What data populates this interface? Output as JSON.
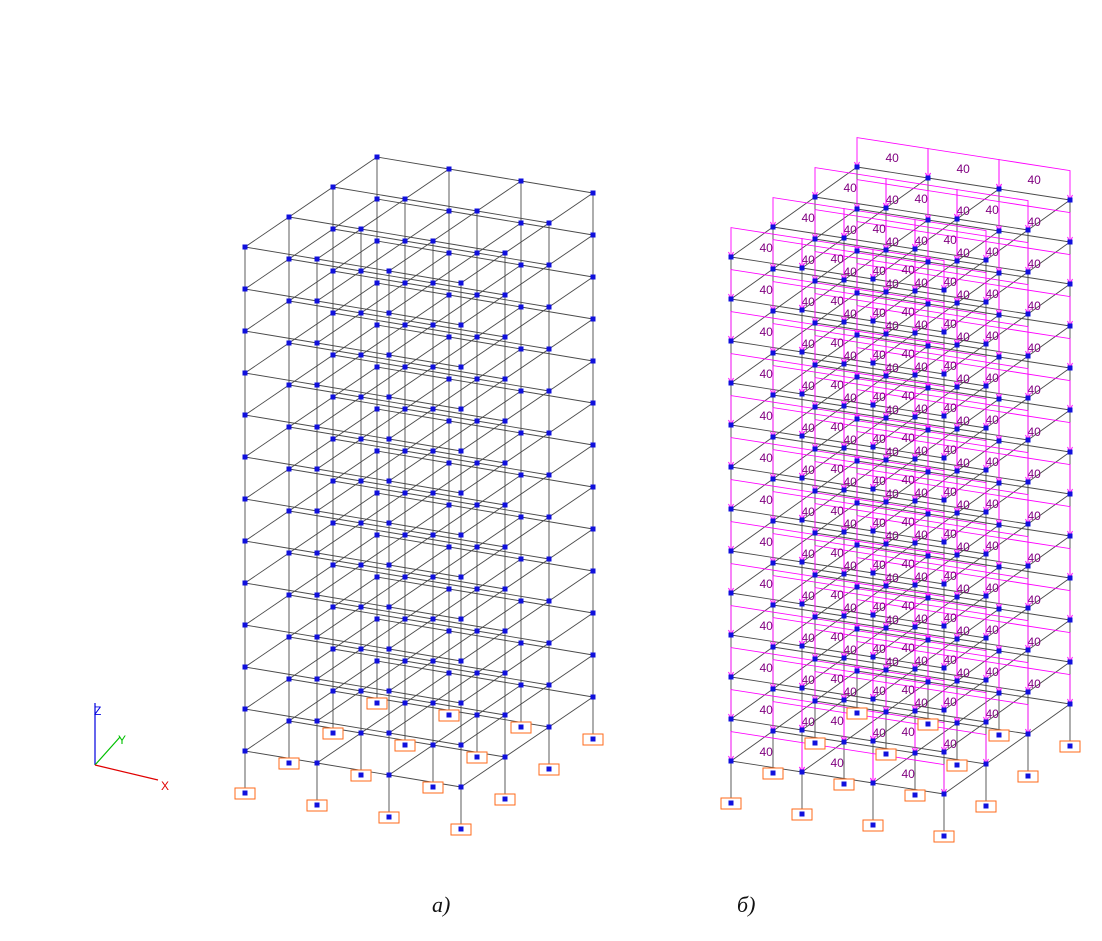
{
  "axis_triad": {
    "x_label": "X",
    "y_label": "Y",
    "z_label": "Z"
  },
  "panels": [
    {
      "caption": "а)",
      "has_loads": false
    },
    {
      "caption": "б)",
      "has_loads": true,
      "load_value": "40"
    }
  ],
  "model": {
    "storeys": 13,
    "bays_x": 3,
    "bays_y": 3
  },
  "colors": {
    "frame": "#4a4a4a",
    "node": "#1010dd",
    "support": "#ff6a1a",
    "load": "#ff00ff",
    "load_text": "#800080",
    "axis_x": "#e00000",
    "axis_y": "#00c000",
    "axis_z": "#0000e0"
  }
}
